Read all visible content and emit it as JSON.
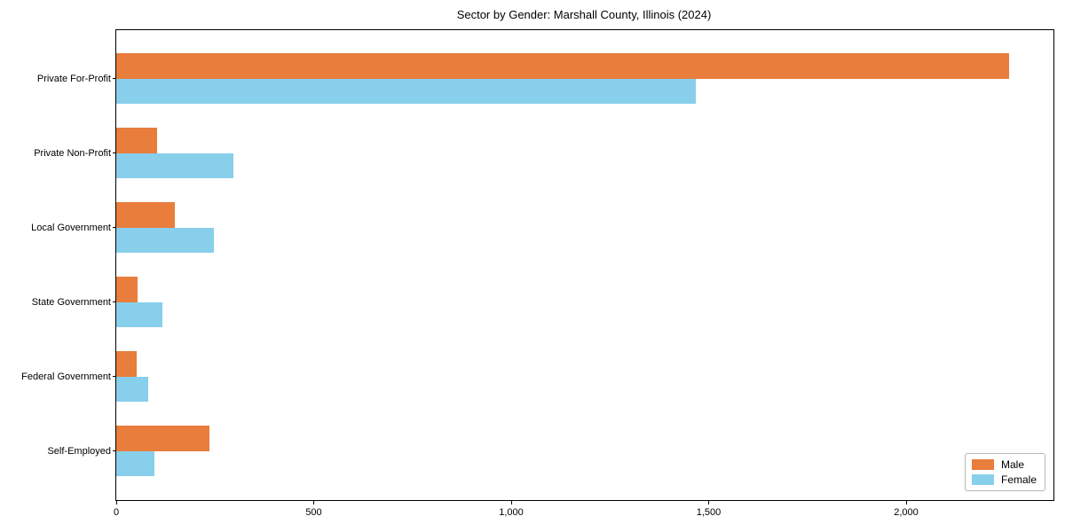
{
  "title": "Sector by Gender: Marshall County, Illinois (2024)",
  "chart_data": {
    "type": "bar",
    "orientation": "horizontal",
    "title": "Sector by Gender: Marshall County, Illinois (2024)",
    "xlabel": "",
    "ylabel": "",
    "categories": [
      "Private For-Profit",
      "Private Non-Profit",
      "Local Government",
      "State Government",
      "Federal Government",
      "Self-Employed"
    ],
    "series": [
      {
        "name": "Male",
        "color": "#e87d3c",
        "values": [
          2260,
          103,
          149,
          55,
          51,
          236
        ]
      },
      {
        "name": "Female",
        "color": "#87cfeb",
        "values": [
          1467,
          296,
          248,
          116,
          81,
          96
        ]
      }
    ],
    "xlim": [
      0,
      2373
    ],
    "xticks": [
      0,
      500,
      1000,
      1500,
      2000
    ],
    "xtick_labels": [
      "0",
      "500",
      "1,000",
      "1,500",
      "2,000"
    ],
    "grid": false,
    "legend_position": "lower right",
    "frame": true
  },
  "colors": {
    "male": "#e87d3c",
    "female": "#87cfeb",
    "axis": "#000000",
    "background": "#ffffff"
  }
}
